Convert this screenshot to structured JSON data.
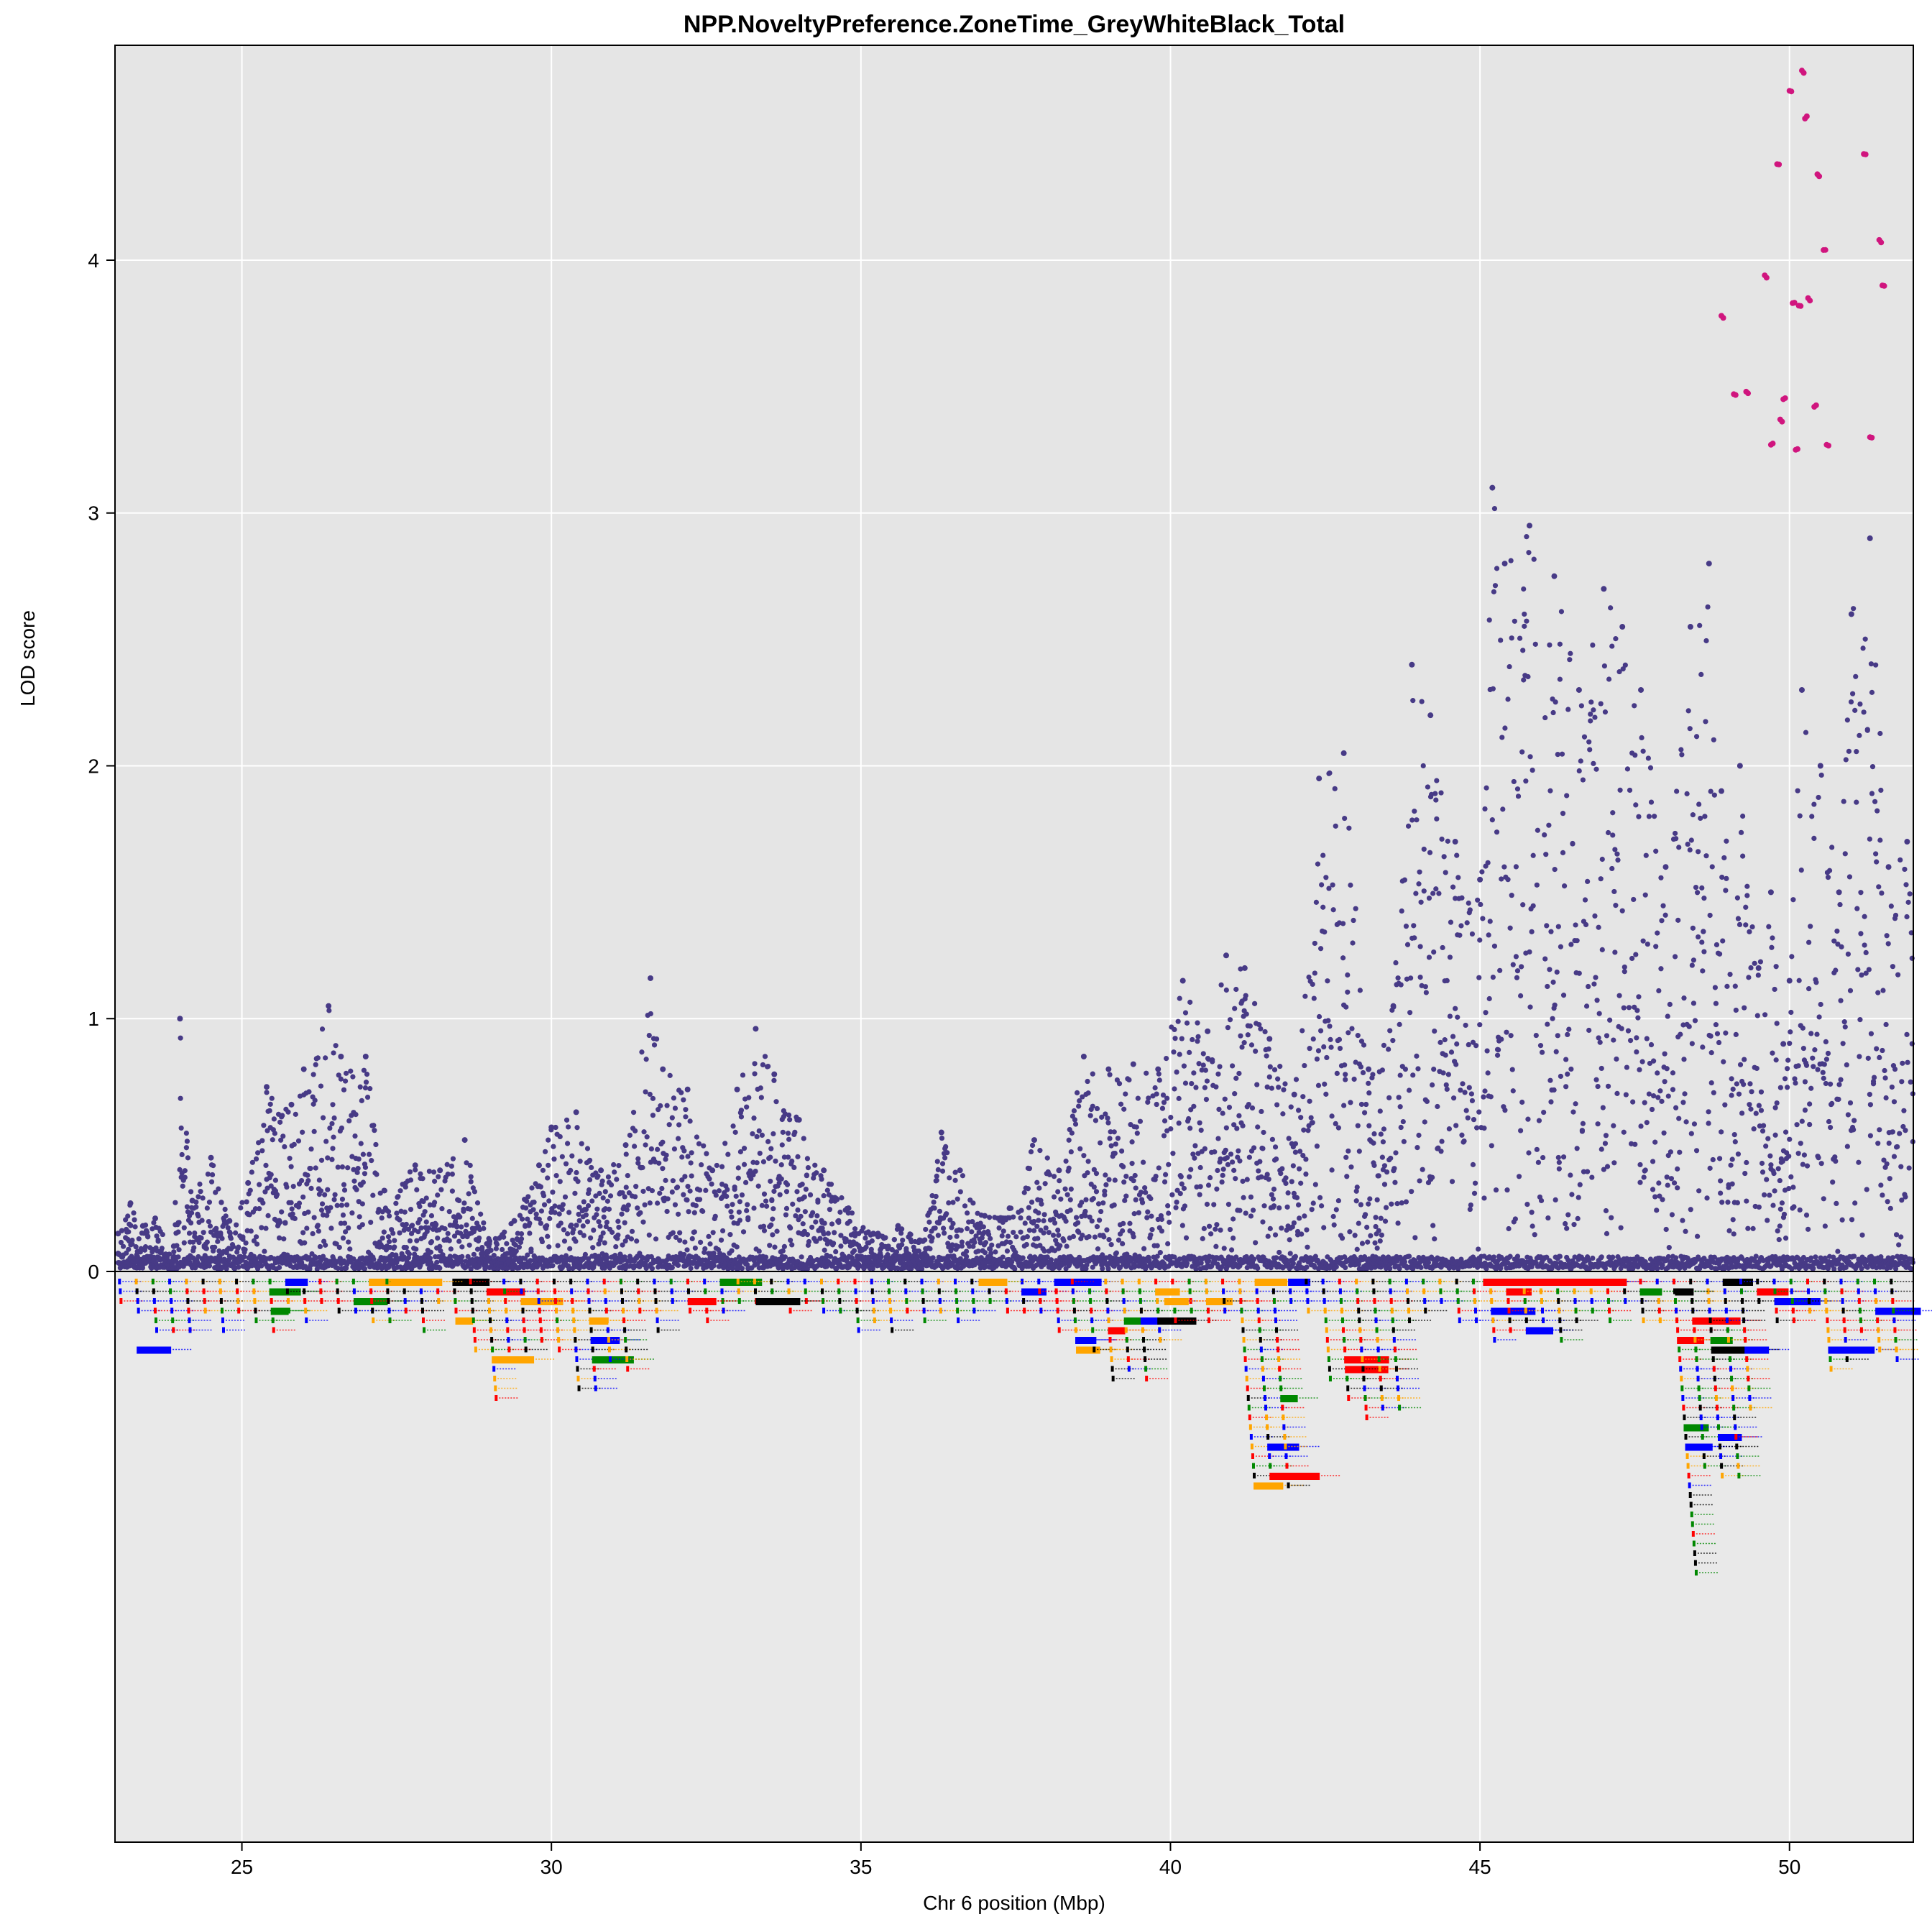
{
  "chart_data": {
    "type": "scatter",
    "title": "NPP.NoveltyPreference.ZoneTime_GreyWhiteBlack_Total",
    "xlabel": "Chr 6 position (Mbp)",
    "ylabel": "LOD score",
    "xlim": [
      22.95,
      52.0
    ],
    "ylim": [
      0,
      4.85
    ],
    "xticks": [
      25,
      30,
      35,
      40,
      45,
      50
    ],
    "yticks": [
      0,
      1,
      2,
      3,
      4
    ],
    "grid": true,
    "colors": {
      "points": "#473a86",
      "highlight": "#d0157e",
      "panel_background": "#e5e5e5",
      "gene_panel_background": "#e9e9e9",
      "grid": "#ffffff",
      "gene_colors": [
        "#000000",
        "#ff0000",
        "#0000ff",
        "#008800",
        "#ffa500"
      ]
    },
    "series": [
      {
        "values": [
          [
            23.0,
            0.15
          ],
          [
            23.2,
            0.27
          ],
          [
            23.4,
            0.18
          ],
          [
            23.6,
            0.21
          ],
          [
            23.9,
            0.1
          ],
          [
            24.0,
            1.0
          ],
          [
            24.2,
            0.28
          ],
          [
            24.5,
            0.45
          ],
          [
            24.8,
            0.2
          ],
          [
            25.1,
            0.35
          ],
          [
            25.4,
            0.73
          ],
          [
            25.8,
            0.66
          ],
          [
            26.0,
            0.8
          ],
          [
            26.4,
            1.05
          ],
          [
            26.6,
            0.85
          ],
          [
            27.0,
            0.85
          ],
          [
            27.3,
            0.32
          ],
          [
            27.8,
            0.42
          ],
          [
            28.2,
            0.4
          ],
          [
            28.6,
            0.52
          ],
          [
            29.0,
            0.12
          ],
          [
            29.4,
            0.2
          ],
          [
            29.8,
            0.42
          ],
          [
            30.0,
            0.57
          ],
          [
            30.4,
            0.63
          ],
          [
            30.8,
            0.4
          ],
          [
            31.2,
            0.5
          ],
          [
            31.6,
            1.16
          ],
          [
            31.8,
            0.8
          ],
          [
            32.2,
            0.72
          ],
          [
            32.6,
            0.4
          ],
          [
            33.0,
            0.72
          ],
          [
            33.3,
            0.96
          ],
          [
            33.6,
            0.78
          ],
          [
            34.0,
            0.6
          ],
          [
            34.4,
            0.4
          ],
          [
            34.8,
            0.25
          ],
          [
            35.2,
            0.15
          ],
          [
            35.6,
            0.18
          ],
          [
            36.0,
            0.12
          ],
          [
            36.3,
            0.55
          ],
          [
            36.6,
            0.4
          ],
          [
            37.0,
            0.22
          ],
          [
            37.4,
            0.25
          ],
          [
            37.8,
            0.52
          ],
          [
            38.2,
            0.4
          ],
          [
            38.6,
            0.85
          ],
          [
            39.0,
            0.8
          ],
          [
            39.4,
            0.82
          ],
          [
            39.8,
            0.8
          ],
          [
            40.2,
            1.15
          ],
          [
            40.6,
            0.95
          ],
          [
            40.9,
            1.25
          ],
          [
            41.2,
            1.2
          ],
          [
            41.6,
            0.92
          ],
          [
            42.0,
            0.7
          ],
          [
            42.4,
            1.95
          ],
          [
            42.8,
            2.05
          ],
          [
            43.2,
            0.8
          ],
          [
            43.6,
            1.05
          ],
          [
            43.9,
            2.4
          ],
          [
            44.2,
            2.2
          ],
          [
            44.6,
            1.7
          ],
          [
            45.0,
            1.55
          ],
          [
            45.2,
            3.1
          ],
          [
            45.4,
            2.8
          ],
          [
            45.8,
            2.95
          ],
          [
            46.2,
            2.75
          ],
          [
            46.6,
            2.3
          ],
          [
            47.0,
            2.7
          ],
          [
            47.3,
            2.55
          ],
          [
            47.6,
            2.3
          ],
          [
            48.0,
            1.6
          ],
          [
            48.4,
            2.55
          ],
          [
            48.7,
            2.8
          ],
          [
            48.9,
            1.9
          ],
          [
            49.2,
            2.0
          ],
          [
            49.5,
            1.2
          ],
          [
            49.7,
            1.5
          ],
          [
            49.9,
            0.9
          ],
          [
            50.0,
            1.15
          ],
          [
            50.2,
            2.3
          ],
          [
            50.5,
            2.0
          ],
          [
            50.8,
            1.5
          ],
          [
            51.0,
            2.6
          ],
          [
            51.3,
            2.9
          ],
          [
            51.6,
            1.6
          ],
          [
            51.9,
            1.7
          ]
        ]
      },
      {
        "values": [
          [
            48.9,
            3.78
          ],
          [
            49.1,
            3.47
          ],
          [
            49.3,
            3.48
          ],
          [
            49.6,
            3.94
          ],
          [
            49.7,
            3.27
          ],
          [
            49.8,
            4.38
          ],
          [
            49.85,
            3.37
          ],
          [
            49.9,
            3.45
          ],
          [
            50.0,
            4.67
          ],
          [
            50.05,
            3.83
          ],
          [
            50.1,
            3.25
          ],
          [
            50.15,
            3.82
          ],
          [
            50.2,
            4.75
          ],
          [
            50.25,
            4.56
          ],
          [
            50.3,
            3.85
          ],
          [
            50.4,
            3.42
          ],
          [
            50.45,
            4.34
          ],
          [
            50.55,
            4.04
          ],
          [
            50.6,
            3.27
          ],
          [
            51.2,
            4.42
          ],
          [
            51.3,
            3.3
          ],
          [
            51.45,
            4.08
          ],
          [
            51.5,
            3.9
          ]
        ]
      }
    ]
  }
}
